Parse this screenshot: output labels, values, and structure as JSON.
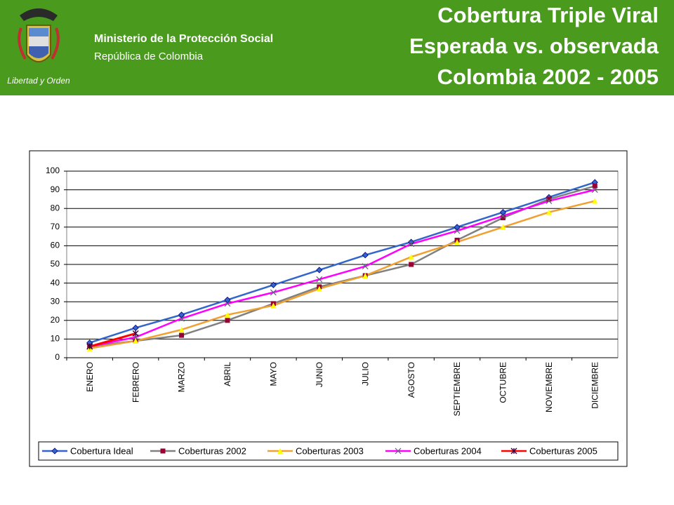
{
  "header": {
    "ministry": "Ministerio de la Protección Social",
    "country": "República de Colombia",
    "motto": "Libertad y Orden",
    "title_lines": [
      "Cobertura Triple Viral",
      "Esperada vs. observada",
      "Colombia  2002 - 2005"
    ]
  },
  "chart_data": {
    "type": "line",
    "categories": [
      "ENERO",
      "FEBRERO",
      "MARZO",
      "ABRIL",
      "MAYO",
      "JUNIO",
      "JULIO",
      "AGOSTO",
      "SEPTIEMBRE",
      "OCTUBRE",
      "NOVIEMBRE",
      "DICIEMBRE"
    ],
    "ylim": [
      0,
      100
    ],
    "yticks": [
      0,
      10,
      20,
      30,
      40,
      50,
      60,
      70,
      80,
      90,
      100
    ],
    "grid": true,
    "legend": "bottom",
    "series": [
      {
        "name": "Cobertura Ideal",
        "color": "#3366cc",
        "marker": "diamond",
        "marker_color": "#3366cc",
        "values": [
          8,
          16,
          23,
          31,
          39,
          47,
          55,
          62,
          70,
          78,
          86,
          94
        ]
      },
      {
        "name": "Coberturas 2002",
        "color": "#808080",
        "marker": "square",
        "marker_color": "#990033",
        "values": [
          6,
          9,
          12,
          20,
          29,
          38,
          44,
          50,
          63,
          75,
          85,
          92
        ]
      },
      {
        "name": "Coberturas 2003",
        "color": "#f0a030",
        "marker": "triangle",
        "marker_color": "#ffff00",
        "values": [
          5,
          9,
          15,
          23,
          28,
          37,
          44,
          54,
          62,
          70,
          78,
          84
        ]
      },
      {
        "name": "Coberturas 2004",
        "color": "#ff00ff",
        "marker": "x",
        "marker_color": "#606080",
        "values": [
          6,
          11,
          21,
          29,
          35,
          42,
          49,
          61,
          68,
          76,
          84,
          90
        ]
      },
      {
        "name": "Coberturas 2005",
        "color": "#ff0000",
        "marker": "star",
        "marker_color": "#400040",
        "values": [
          6,
          13,
          null,
          null,
          null,
          null,
          null,
          null,
          null,
          null,
          null,
          null
        ]
      }
    ]
  }
}
